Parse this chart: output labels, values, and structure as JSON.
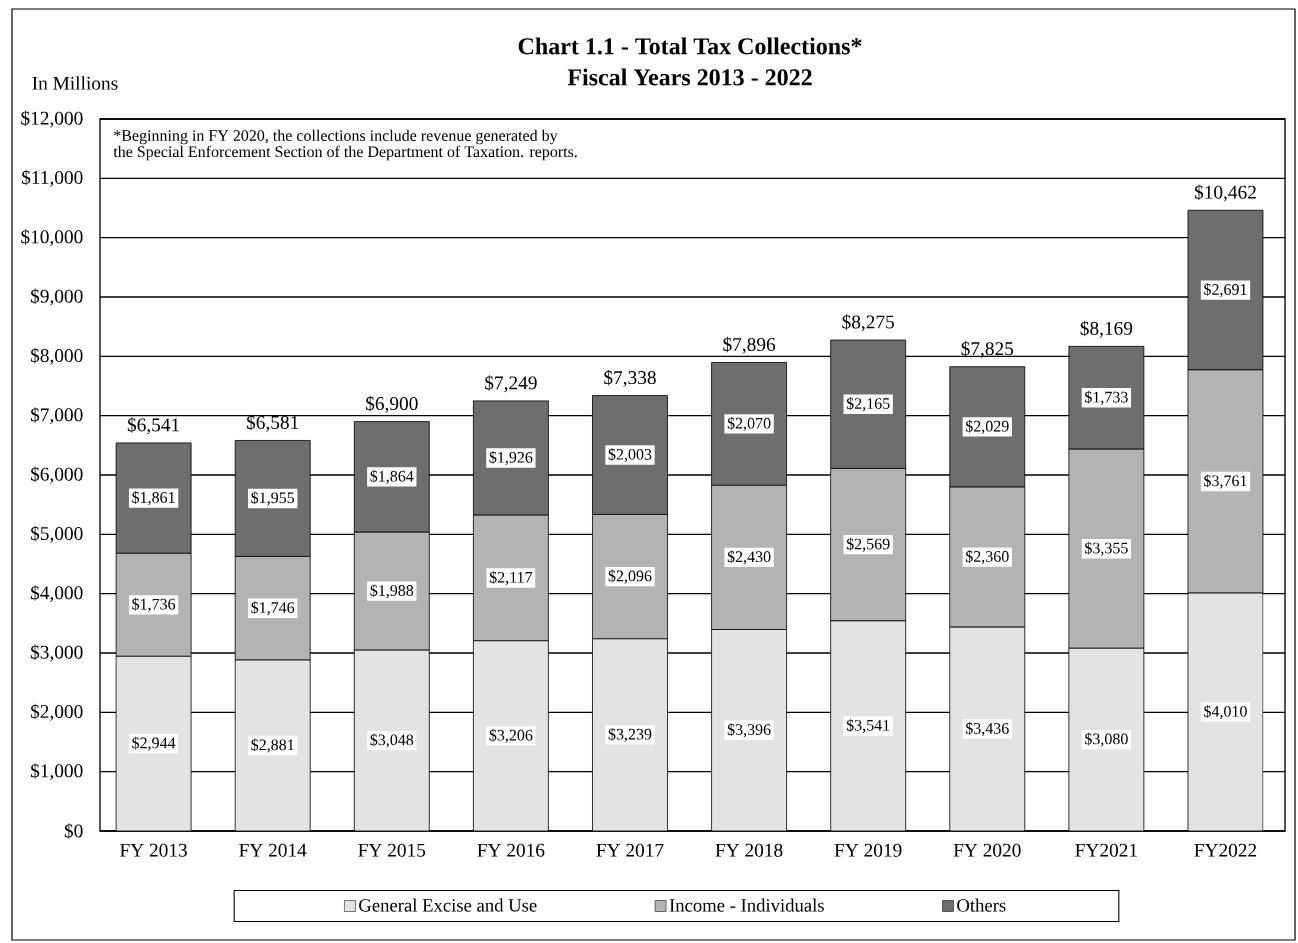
{
  "chart_data": {
    "type": "bar",
    "stacked": true,
    "title": "Chart 1.1 - Total Tax Collections*",
    "subtitle": "Fiscal Years 2013 - 2022",
    "ylabel": "In Millions",
    "categories": [
      "FY 2013",
      "FY 2014",
      "FY 2015",
      "FY 2016",
      "FY 2017",
      "FY 2018",
      "FY 2019",
      "FY 2020",
      "FY2021",
      "FY2022"
    ],
    "series": [
      {
        "name": "General Excise and Use",
        "color": "#e3e3e3",
        "values": [
          2944,
          2881,
          3048,
          3206,
          3239,
          3396,
          3541,
          3436,
          3080,
          4010
        ],
        "value_labels": [
          "$2,944",
          "$2,881",
          "$3,048",
          "$3,206",
          "$3,239",
          "$3,396",
          "$3,541",
          "$3,436",
          "$3,080",
          "$4,010"
        ]
      },
      {
        "name": "Income - Individuals",
        "color": "#b3b3b3",
        "values": [
          1736,
          1746,
          1988,
          2117,
          2096,
          2430,
          2569,
          2360,
          3355,
          3761
        ],
        "value_labels": [
          "$1,736",
          "$1,746",
          "$1,988",
          "$2,117",
          "$2,096",
          "$2,430",
          "$2,569",
          "$2,360",
          "$3,355",
          "$3,761"
        ]
      },
      {
        "name": "Others",
        "color": "#6e6e6e",
        "values": [
          1861,
          1955,
          1864,
          1926,
          2003,
          2070,
          2165,
          2029,
          1733,
          2691
        ],
        "value_labels": [
          "$1,861",
          "$1,955",
          "$1,864",
          "$1,926",
          "$2,003",
          "$2,070",
          "$2,165",
          "$2,029",
          "$1,733",
          "$2,691"
        ]
      }
    ],
    "totals": [
      "$6,541",
      "$6,581",
      "$6,900",
      "$7,249",
      "$7,338",
      "$7,896",
      "$8,275",
      "$7,825",
      "$8,169",
      "$10,462"
    ],
    "ylim": [
      0,
      12000
    ],
    "yticks": [
      {
        "value": 0,
        "label": "$0"
      },
      {
        "value": 1000,
        "label": "$1,000"
      },
      {
        "value": 2000,
        "label": "$2,000"
      },
      {
        "value": 3000,
        "label": "$3,000"
      },
      {
        "value": 4000,
        "label": "$4,000"
      },
      {
        "value": 5000,
        "label": "$5,000"
      },
      {
        "value": 6000,
        "label": "$6,000"
      },
      {
        "value": 7000,
        "label": "$7,000"
      },
      {
        "value": 8000,
        "label": "$8,000"
      },
      {
        "value": 9000,
        "label": "$9,000"
      },
      {
        "value": 10000,
        "label": "$10,000"
      },
      {
        "value": 11000,
        "label": "$11,000"
      },
      {
        "value": 12000,
        "label": "$12,000"
      }
    ],
    "grid": "y",
    "legend": "bottom",
    "annotations": [
      "*Beginning in FY 2020, the collections include revenue generated by",
      "the Special Enforcement Section of the Department of Taxation. reports."
    ]
  }
}
